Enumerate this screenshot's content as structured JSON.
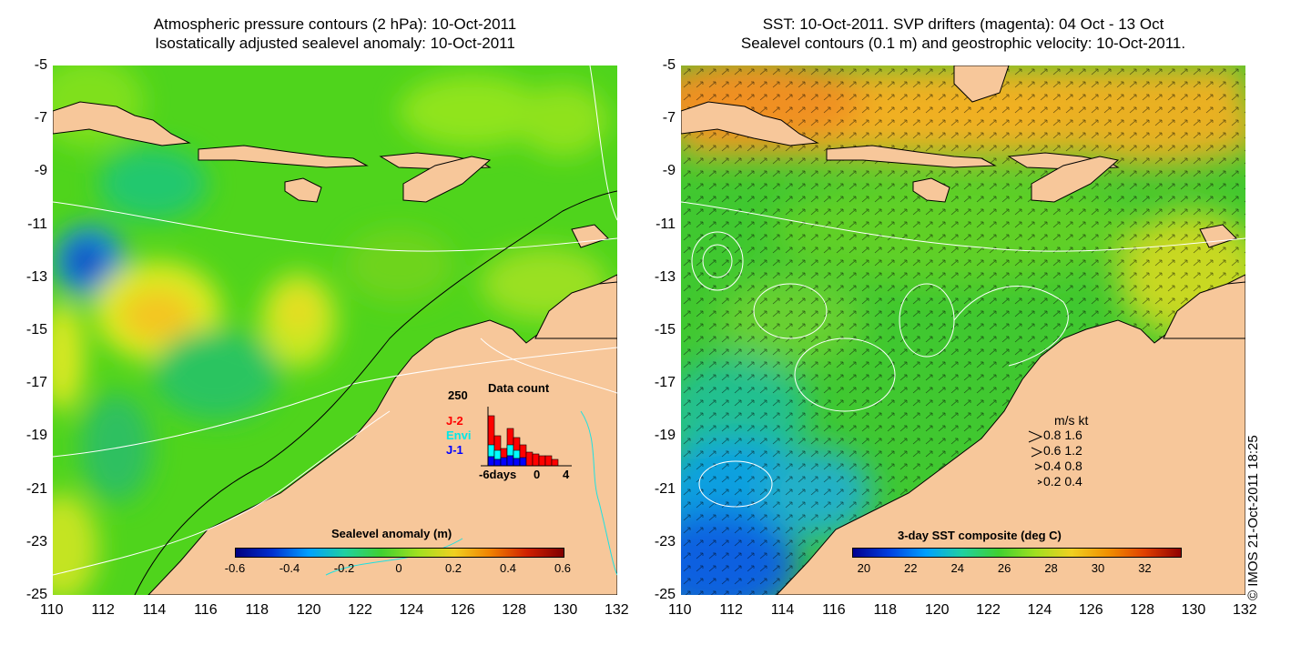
{
  "left_panel": {
    "title_line1": "Atmospheric pressure contours (2 hPa): 10-Oct-2011",
    "title_line2": "Isostatically adjusted sealevel anomaly: 10-Oct-2011",
    "colorbar": {
      "title": "Sealevel anomaly (m)",
      "ticks": [
        "-0.6",
        "-0.4",
        "-0.2",
        "0",
        "0.2",
        "0.4",
        "0.6"
      ],
      "min": -0.6,
      "max": 0.6
    },
    "data_count": {
      "title": "Data count",
      "ymax_label": "250",
      "x_labels": [
        "-6days",
        "0",
        "4"
      ],
      "series": [
        {
          "name": "J-2",
          "color": "#ff0000"
        },
        {
          "name": "Envi",
          "color": "#00ffff"
        },
        {
          "name": "J-1",
          "color": "#0000ff"
        }
      ]
    }
  },
  "right_panel": {
    "title_line1": "SST: 10-Oct-2011. SVP drifters (magenta): 04 Oct - 13 Oct",
    "title_line2": "Sealevel contours (0.1 m) and geostrophic velocity: 10-Oct-2011.",
    "colorbar": {
      "title": "3-day SST composite (deg C)",
      "ticks": [
        "20",
        "22",
        "24",
        "26",
        "28",
        "30",
        "32"
      ],
      "min": 19.5,
      "max": 33.5
    },
    "velocity_legend": {
      "header": "m/s  kt",
      "rows": [
        "0.8  1.6",
        "0.6  1.2",
        "0.4  0.8",
        "0.2  0.4"
      ]
    },
    "copyright": "© IMOS 21-Oct-2011 18:25"
  },
  "axes": {
    "x_ticks": [
      "110",
      "112",
      "114",
      "116",
      "118",
      "120",
      "122",
      "124",
      "126",
      "128",
      "130",
      "132"
    ],
    "y_ticks": [
      "-5",
      "-7",
      "-9",
      "-11",
      "-13",
      "-15",
      "-17",
      "-19",
      "-21",
      "-23",
      "-25"
    ],
    "lon_range": [
      110,
      132
    ],
    "lat_range": [
      -25,
      -5
    ]
  },
  "colors": {
    "land": "#f7c79a",
    "contour": "#ffffff",
    "coast_outline": "#000000"
  }
}
